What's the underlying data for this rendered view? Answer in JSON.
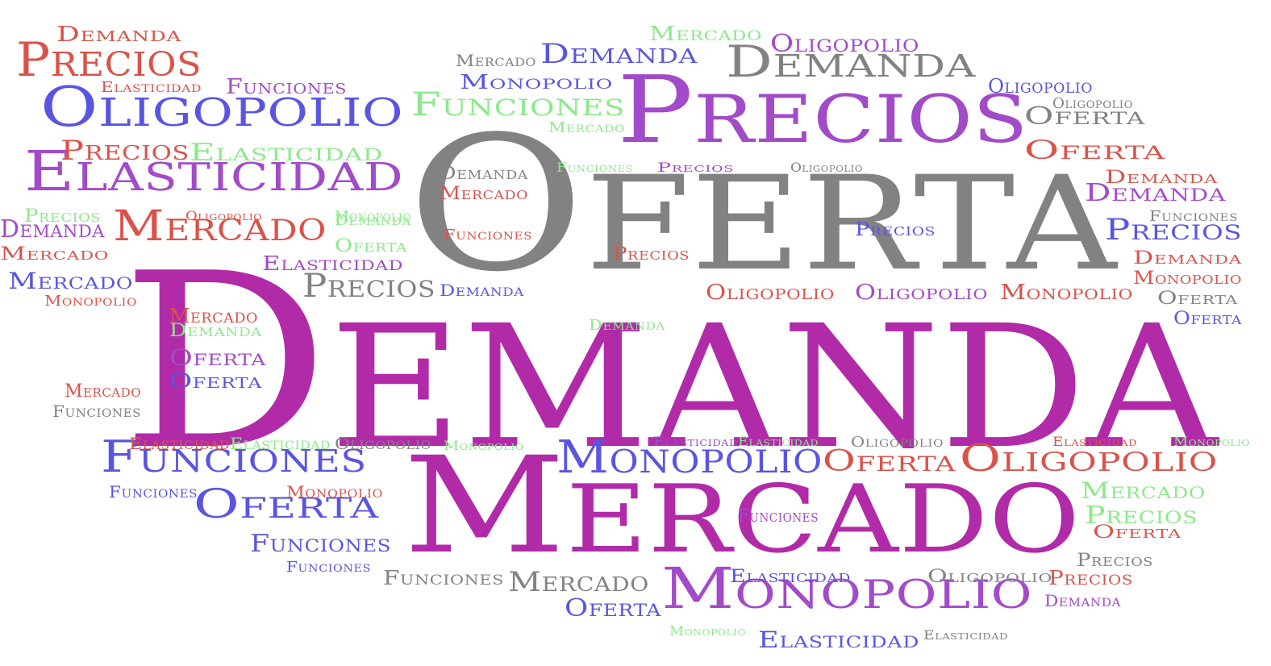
{
  "palette": {
    "magenta": "#b12ba8",
    "violet": "#a24bc8",
    "gray": "#828282",
    "red": "#d9534a",
    "blue": "#5a55e0",
    "green": "#8ce98a"
  },
  "words": [
    {
      "text": "Demanda",
      "color": "magenta"
    },
    {
      "text": "Oferta",
      "color": "gray"
    },
    {
      "text": "Mercado",
      "color": "magenta"
    },
    {
      "text": "Precios",
      "color": "violet"
    },
    {
      "text": "Oligopolio",
      "color": "blue"
    },
    {
      "text": "Elasticidad",
      "color": "violet"
    },
    {
      "text": "Demanda",
      "color": "gray"
    },
    {
      "text": "Monopolio",
      "color": "violet"
    },
    {
      "text": "Monopolio",
      "color": "blue"
    },
    {
      "text": "Funciones",
      "color": "blue"
    },
    {
      "text": "Precios",
      "color": "red"
    },
    {
      "text": "Mercado",
      "color": "red"
    },
    {
      "text": "Oligopolio",
      "color": "red"
    },
    {
      "text": "Oferta",
      "color": "blue"
    },
    {
      "text": "Oferta",
      "color": "red"
    },
    {
      "text": "Precios",
      "color": "gray"
    },
    {
      "text": "Funciones",
      "color": "green"
    },
    {
      "text": "Demanda",
      "color": "blue"
    },
    {
      "text": "Demanda",
      "color": "red"
    },
    {
      "text": "Precios",
      "color": "red"
    },
    {
      "text": "Elasticidad",
      "color": "green"
    },
    {
      "text": "Oligopolio",
      "color": "violet"
    },
    {
      "text": "Oferta",
      "color": "gray"
    },
    {
      "text": "Oferta",
      "color": "red"
    },
    {
      "text": "Demanda",
      "color": "violet"
    },
    {
      "text": "Precios",
      "color": "blue"
    },
    {
      "text": "Mercado",
      "color": "blue"
    },
    {
      "text": "Oferta",
      "color": "violet"
    },
    {
      "text": "Funciones",
      "color": "violet"
    },
    {
      "text": "Mercado",
      "color": "green"
    },
    {
      "text": "Mercado",
      "color": "gray"
    },
    {
      "text": "Funciones",
      "color": "blue"
    },
    {
      "text": "Precios",
      "color": "green"
    },
    {
      "text": "Mercado",
      "color": "green"
    },
    {
      "text": "Demanda",
      "color": "red"
    },
    {
      "text": "Demanda",
      "color": "red"
    },
    {
      "text": "Monopolio",
      "color": "blue"
    },
    {
      "text": "Oligopolio",
      "color": "red"
    },
    {
      "text": "Oligopolio",
      "color": "violet"
    },
    {
      "text": "Monopolio",
      "color": "red"
    },
    {
      "text": "Elasticidad",
      "color": "violet"
    },
    {
      "text": "Mercado",
      "color": "red"
    },
    {
      "text": "Elasticidad",
      "color": "blue"
    },
    {
      "text": "Elasticidad",
      "color": "blue"
    },
    {
      "text": "Oferta",
      "color": "blue"
    },
    {
      "text": "Funciones",
      "color": "violet"
    },
    {
      "text": "Oligopolio",
      "color": "gray"
    },
    {
      "text": "Precios",
      "color": "red"
    },
    {
      "text": "Monopolio",
      "color": "red"
    },
    {
      "text": "Precios",
      "color": "blue"
    },
    {
      "text": "Oferta",
      "color": "gray"
    },
    {
      "text": "Oferta",
      "color": "blue"
    },
    {
      "text": "Precios",
      "color": "red"
    },
    {
      "text": "Demanda",
      "color": "green"
    },
    {
      "text": "Mercado",
      "color": "red"
    },
    {
      "text": "Demanda",
      "color": "violet"
    },
    {
      "text": "Funciones",
      "color": "gray"
    },
    {
      "text": "Oligopolio",
      "color": "gray"
    },
    {
      "text": "Precios",
      "color": "violet"
    },
    {
      "text": "Demanda",
      "color": "gray"
    },
    {
      "text": "Mercado",
      "color": "red"
    },
    {
      "text": "Funciones",
      "color": "red"
    },
    {
      "text": "Demanda",
      "color": "blue"
    },
    {
      "text": "Mercado",
      "color": "red"
    },
    {
      "text": "Demanda",
      "color": "green"
    },
    {
      "text": "Oferta",
      "color": "blue"
    },
    {
      "text": "Oferta",
      "color": "gray"
    },
    {
      "text": "Oferta",
      "color": "red"
    },
    {
      "text": "Funciones",
      "color": "gray"
    },
    {
      "text": "Monopolio",
      "color": "red"
    },
    {
      "text": "Funciones",
      "color": "blue"
    },
    {
      "text": "Funciones",
      "color": "blue"
    },
    {
      "text": "Funciones",
      "color": "gray"
    },
    {
      "text": "Elasticidad",
      "color": "red"
    },
    {
      "text": "Elasticidad",
      "color": "green"
    },
    {
      "text": "Oligopolio",
      "color": "gray"
    },
    {
      "text": "Monopolio",
      "color": "green"
    },
    {
      "text": "Elasticidad",
      "color": "violet"
    },
    {
      "text": "Elasticidad",
      "color": "green"
    },
    {
      "text": "Oligopolio",
      "color": "gray"
    },
    {
      "text": "Elasticidad",
      "color": "red"
    },
    {
      "text": "Monopolio",
      "color": "green"
    },
    {
      "text": "Precios",
      "color": "violet"
    },
    {
      "text": "Precios",
      "color": "gray"
    },
    {
      "text": "Demanda",
      "color": "violet"
    },
    {
      "text": "Oligopolio",
      "color": "gray"
    },
    {
      "text": "Monopolio",
      "color": "green"
    },
    {
      "text": "Elasticidad",
      "color": "gray"
    },
    {
      "text": "Funciones",
      "color": "green"
    },
    {
      "text": "Oligopolio",
      "color": "red"
    },
    {
      "text": "Oligopolio",
      "color": "blue"
    },
    {
      "text": "Mercado",
      "color": "green"
    },
    {
      "text": "Oligopolio",
      "color": "violet"
    },
    {
      "text": "Demanda",
      "color": "red"
    },
    {
      "text": "Monopolio",
      "color": "red"
    },
    {
      "text": "Mercado",
      "color": "gray"
    },
    {
      "text": "Elasticidad",
      "color": "red"
    },
    {
      "text": "Funciones",
      "color": "violet"
    },
    {
      "text": "Oligopolio",
      "color": "red"
    },
    {
      "text": "Precios",
      "color": "green"
    },
    {
      "text": "Monopolio",
      "color": "green"
    },
    {
      "text": "Oferta",
      "color": "green"
    },
    {
      "text": "Elasticidad",
      "color": "violet"
    },
    {
      "text": "Demanda",
      "color": "green"
    }
  ]
}
